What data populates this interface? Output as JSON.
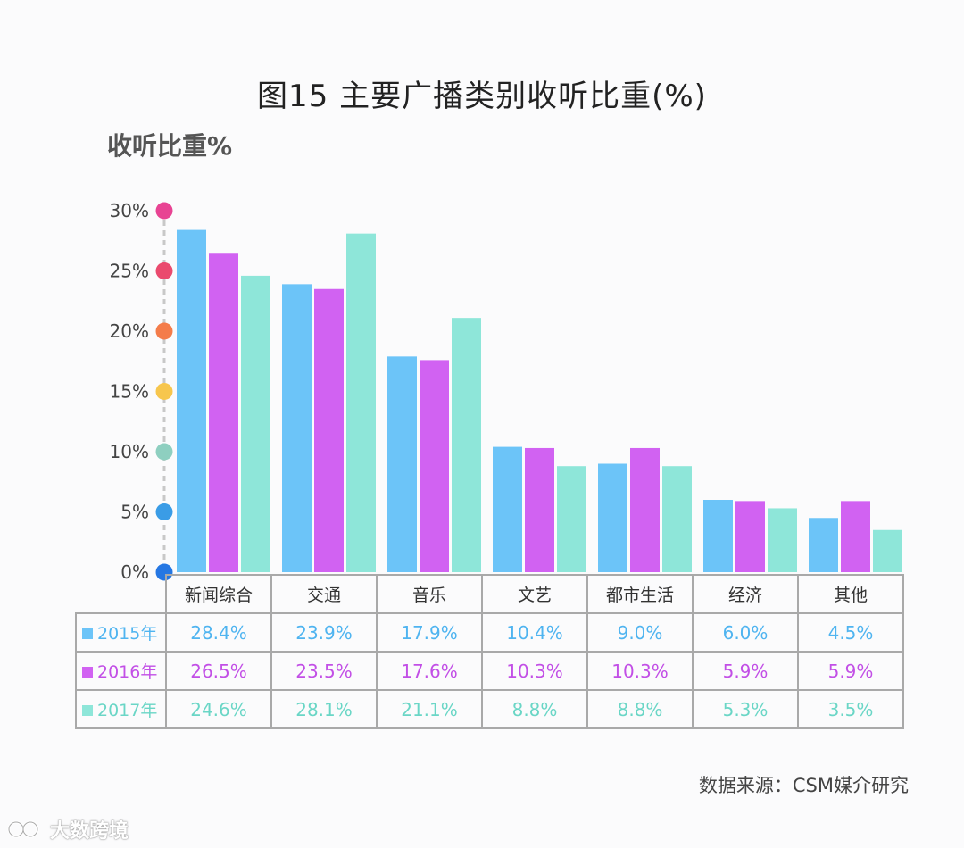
{
  "title": "图15 主要广播类别收听比重(%)",
  "unit_label": "收听比重%",
  "source": "数据来源：CSM媒介研究",
  "watermark": "大数跨境",
  "colors": {
    "2015": "#6cc4f8",
    "2016": "#d162f2",
    "2017": "#8ee6d9",
    "dots": [
      "#e84393",
      "#ea4a6e",
      "#f47c4a",
      "#f7c64d",
      "#8ecfc0",
      "#3a9ce6",
      "#2577e3"
    ]
  },
  "chart_data": {
    "type": "bar",
    "categories": [
      "新闻综合",
      "交通",
      "音乐",
      "文艺",
      "都市生活",
      "经济",
      "其他"
    ],
    "series": [
      {
        "name": "2015年",
        "values": [
          28.4,
          23.9,
          17.9,
          10.4,
          9.0,
          6.0,
          4.5
        ]
      },
      {
        "name": "2016年",
        "values": [
          26.5,
          23.5,
          17.6,
          10.3,
          10.3,
          5.9,
          5.9
        ]
      },
      {
        "name": "2017年",
        "values": [
          24.6,
          28.1,
          21.1,
          8.8,
          8.8,
          5.3,
          3.5
        ]
      }
    ],
    "yticks": [
      "0%",
      "5%",
      "10%",
      "15%",
      "20%",
      "25%",
      "30%"
    ],
    "ylim": [
      0,
      30
    ],
    "table_values": [
      [
        "28.4%",
        "23.9%",
        "17.9%",
        "10.4%",
        "9.0%",
        "6.0%",
        "4.5%"
      ],
      [
        "26.5%",
        "23.5%",
        "17.6%",
        "10.3%",
        "10.3%",
        "5.9%",
        "5.9%"
      ],
      [
        "24.6%",
        "28.1%",
        "21.1%",
        "8.8%",
        "8.8%",
        "5.3%",
        "3.5%"
      ]
    ]
  }
}
